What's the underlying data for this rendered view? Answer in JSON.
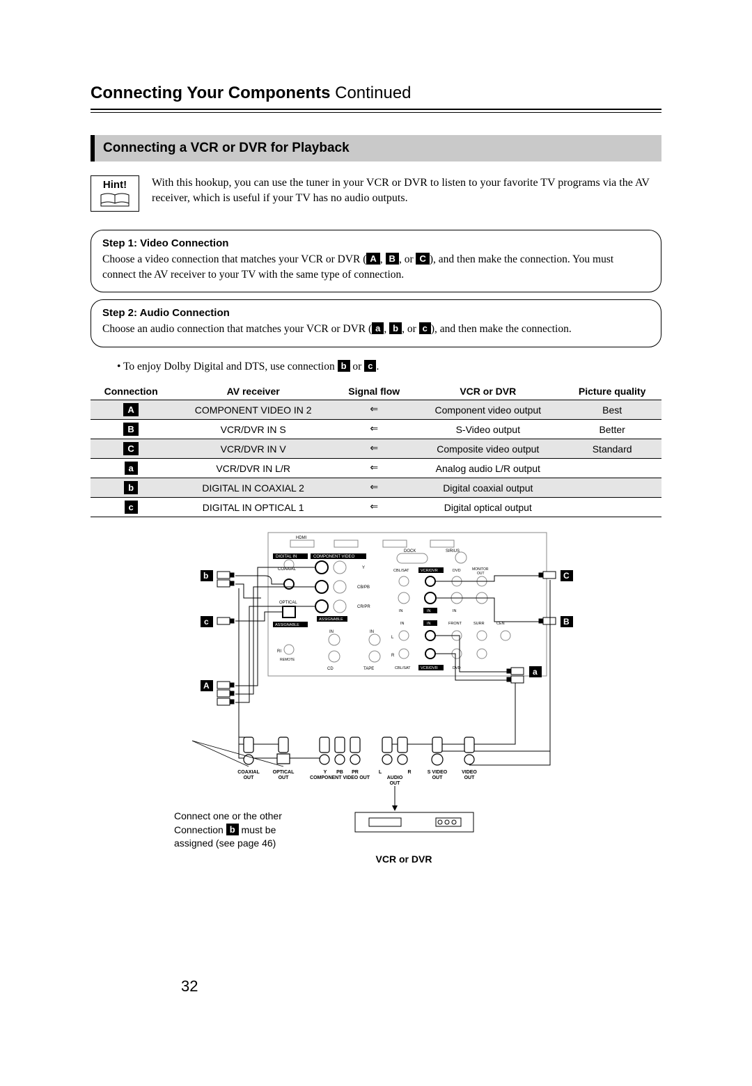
{
  "page": {
    "title_main": "Connecting Your Components",
    "title_suffix": "Continued",
    "number": "32"
  },
  "section": {
    "heading": "Connecting a VCR or DVR for Playback"
  },
  "hint": {
    "label": "Hint!",
    "text": "With this hookup, you can use the tuner in your VCR or DVR to listen to your favorite TV programs via the AV receiver, which is useful if your TV has no audio outputs."
  },
  "step1": {
    "title": "Step 1: Video Connection",
    "pre": "Choose a video connection that matches your VCR or DVR (",
    "mid1": ", ",
    "mid2": ", or ",
    "post": "), and then make the connection. You must connect the AV receiver to your TV with the same type of connection.",
    "boxA": "A",
    "boxB": "B",
    "boxC": "C"
  },
  "step2": {
    "title": "Step 2: Audio Connection",
    "pre": "Choose an audio connection that matches your VCR or DVR (",
    "mid1": ", ",
    "mid2": ", or ",
    "post": "), and then make the connection.",
    "boxa": "a",
    "boxb": "b",
    "boxc": "c"
  },
  "bullet": {
    "pre": "• To enjoy Dolby Digital and DTS, use connection ",
    "mid": " or ",
    "post": ".",
    "box1": "b",
    "box2": "c"
  },
  "table": {
    "headers": [
      "Connection",
      "AV receiver",
      "Signal flow",
      "VCR or DVR",
      "Picture quality"
    ],
    "rows": [
      {
        "shaded": true,
        "tag": "A",
        "cells": [
          "COMPONENT VIDEO IN 2",
          "⇐",
          "Component video output",
          "Best"
        ]
      },
      {
        "shaded": false,
        "tag": "B",
        "cells": [
          "VCR/DVR IN S",
          "⇐",
          "S-Video output",
          "Better"
        ]
      },
      {
        "shaded": true,
        "tag": "C",
        "cells": [
          "VCR/DVR IN V",
          "⇐",
          "Composite video output",
          "Standard"
        ]
      },
      {
        "shaded": false,
        "tag": "a",
        "cells": [
          "VCR/DVR IN L/R",
          "⇐",
          "Analog audio L/R output",
          ""
        ]
      },
      {
        "shaded": true,
        "tag": "b",
        "cells": [
          "DIGITAL IN COAXIAL 2",
          "⇐",
          "Digital coaxial output",
          ""
        ]
      },
      {
        "shaded": false,
        "tag": "c",
        "cells": [
          "DIGITAL IN OPTICAL 1",
          "⇐",
          "Digital optical output",
          ""
        ]
      }
    ]
  },
  "diagram": {
    "callouts": {
      "A": "A",
      "B": "B",
      "C": "C",
      "a": "a",
      "b": "b",
      "c": "c"
    },
    "rear_labels": {
      "digital_in": "DIGITAL IN",
      "component_video": "COMPONENT VIDEO",
      "coaxial": "COAXIAL",
      "optical": "OPTICAL",
      "assignable": "ASSIGNABLE",
      "hdmi": "HDMI",
      "dock": "DOCK",
      "sirius": "SIRIUS",
      "cbl_sat": "CBL/SAT",
      "vcr_dvr": "VCR/DVR",
      "dvd": "DVD",
      "monitor_out": "MONITOR OUT",
      "ri": "RI",
      "remote": "REMOTE",
      "cd": "CD",
      "tape": "TAPE",
      "front": "FRONT",
      "surr": "SURR",
      "cen": "CEN",
      "in": "IN",
      "out": "OUT"
    },
    "device_outputs": [
      "COAXIAL OUT",
      "OPTICAL OUT",
      "Y  PB  PR\nCOMPONENT VIDEO OUT",
      "L   R\nAUDIO OUT",
      "S VIDEO OUT",
      "VIDEO OUT"
    ],
    "note_line1": "Connect one or the other",
    "note_line2_pre": "Connection ",
    "note_line2_box": "b",
    "note_line2_post": " must be",
    "note_line3": "assigned (see page 46)",
    "device_label": "VCR or DVR"
  }
}
